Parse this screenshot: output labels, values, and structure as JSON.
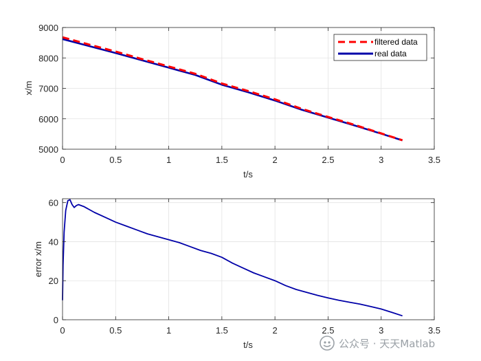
{
  "chart_data": [
    {
      "type": "line",
      "xlabel": "t/s",
      "ylabel": "x/m",
      "xlim": [
        0,
        3.5
      ],
      "ylim": [
        5000,
        9000
      ],
      "xticks": [
        "0",
        "0.5",
        "1",
        "1.5",
        "2",
        "2.5",
        "3",
        "3.5"
      ],
      "yticks": [
        "5000",
        "6000",
        "7000",
        "8000",
        "9000"
      ],
      "grid": true,
      "legend": "top-right",
      "series": [
        {
          "name": "filtered data",
          "style": "dashed",
          "color": "#ff0000",
          "x": [
            0,
            0.25,
            0.5,
            0.75,
            1.0,
            1.25,
            1.5,
            1.75,
            2.0,
            2.25,
            2.5,
            2.75,
            3.0,
            3.2
          ],
          "y": [
            8680,
            8440,
            8210,
            7960,
            7720,
            7480,
            7160,
            6910,
            6640,
            6330,
            6060,
            5800,
            5520,
            5295
          ]
        },
        {
          "name": "real data",
          "style": "solid",
          "color": "#0000a8",
          "x": [
            0,
            0.25,
            0.5,
            0.75,
            1.0,
            1.25,
            1.5,
            1.75,
            2.0,
            2.25,
            2.5,
            2.75,
            3.0,
            3.2
          ],
          "y": [
            8620,
            8390,
            8160,
            7920,
            7680,
            7440,
            7120,
            6870,
            6600,
            6300,
            6040,
            5780,
            5510,
            5290
          ]
        }
      ]
    },
    {
      "type": "line",
      "xlabel": "t/s",
      "ylabel": "error x/m",
      "xlim": [
        0,
        3.5
      ],
      "ylim": [
        0,
        62
      ],
      "xticks": [
        "0",
        "0.5",
        "1",
        "1.5",
        "2",
        "2.5",
        "3",
        "3.5"
      ],
      "yticks": [
        "0",
        "20",
        "40",
        "60"
      ],
      "grid": true,
      "series": [
        {
          "name": "",
          "style": "solid",
          "color": "#0000a8",
          "x": [
            0,
            0.005,
            0.015,
            0.03,
            0.05,
            0.07,
            0.09,
            0.11,
            0.13,
            0.15,
            0.2,
            0.3,
            0.4,
            0.5,
            0.6,
            0.7,
            0.8,
            0.9,
            1.0,
            1.1,
            1.2,
            1.3,
            1.4,
            1.5,
            1.6,
            1.7,
            1.8,
            1.9,
            2.0,
            2.1,
            2.2,
            2.3,
            2.4,
            2.5,
            2.6,
            2.7,
            2.8,
            2.9,
            3.0,
            3.1,
            3.2
          ],
          "y": [
            10,
            28,
            45,
            56,
            61,
            61.5,
            59,
            57.5,
            58.5,
            59,
            58,
            55,
            52.5,
            50,
            48,
            46,
            44,
            42.5,
            41,
            39.5,
            37.5,
            35.5,
            34,
            32,
            29,
            26.5,
            24,
            22,
            20,
            17.5,
            15.5,
            14,
            12.5,
            11.2,
            10,
            9,
            8,
            6.8,
            5.5,
            3.8,
            2
          ]
        }
      ]
    }
  ],
  "watermark": {
    "text": "公众号 · 天天Matlab",
    "icon": "wechat-official-account-icon"
  },
  "colors": {
    "axes": "#262626",
    "grid": "#e3e3e3",
    "watermark": "#9aa0a6"
  }
}
